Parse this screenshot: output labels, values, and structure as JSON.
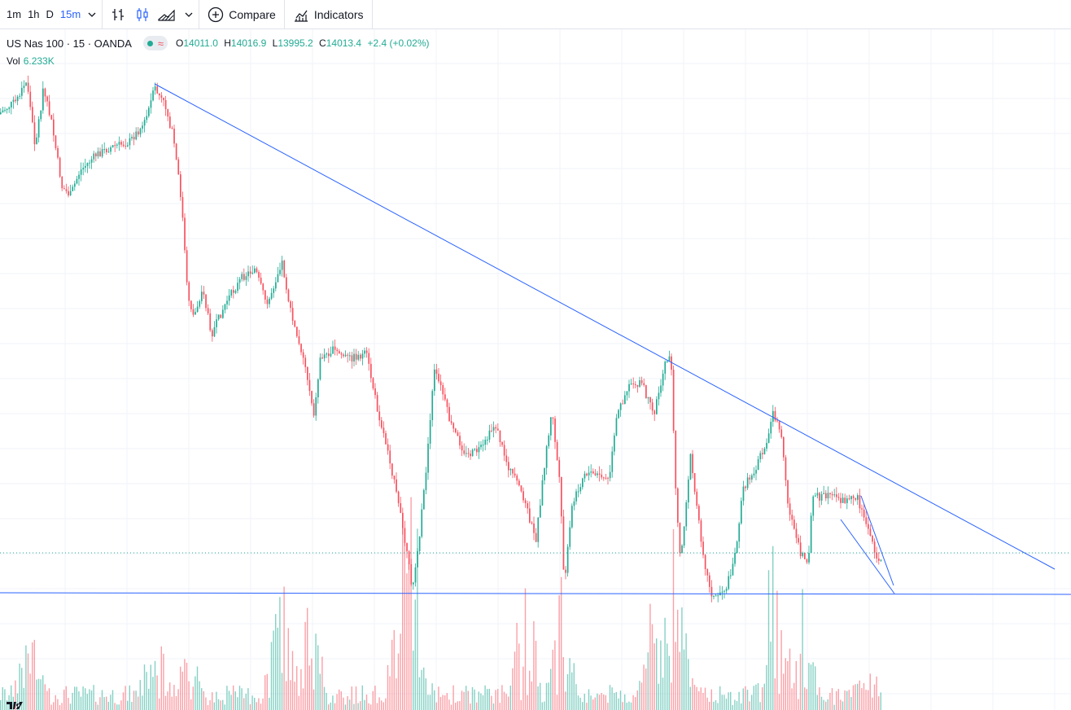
{
  "toolbar": {
    "intervals": [
      "1m",
      "1h",
      "D",
      "15m"
    ],
    "active_interval": "15m",
    "compare_label": "Compare",
    "indicators_label": "Indicators"
  },
  "legend": {
    "title": "US Nas 100 · 15 · OANDA",
    "approx_symbol": "≈",
    "open_key": "O",
    "open": "14011.0",
    "high_key": "H",
    "high": "14016.9",
    "low_key": "L",
    "low": "13995.2",
    "close_key": "C",
    "close": "14013.4",
    "change": "+2.4 (+0.02%)"
  },
  "volume": {
    "label": "Vol",
    "value": "6.233K"
  },
  "colors": {
    "up": "#22ab94",
    "down": "#f7525f",
    "trendline": "#2962ff",
    "grid": "#f0f3fa"
  },
  "icons": [
    "chevron-down-icon",
    "bar-style-icon",
    "candle-style-icon",
    "area-style-icon",
    "compare-plus-icon",
    "indicators-icon",
    "tradingview-logo-icon"
  ]
}
